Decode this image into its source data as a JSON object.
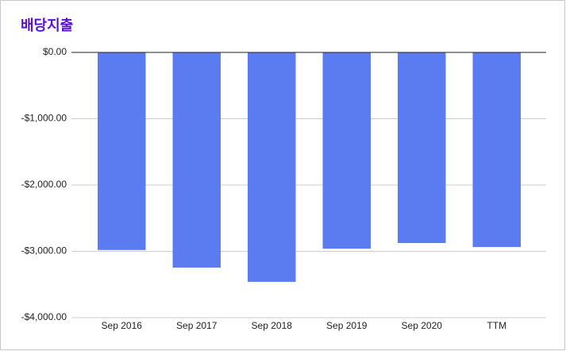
{
  "chart_data": {
    "type": "bar",
    "title": "배당지출",
    "categories": [
      "Sep 2016",
      "Sep 2017",
      "Sep 2018",
      "Sep 2019",
      "Sep 2020",
      "TTM"
    ],
    "values": [
      -2980,
      -3245,
      -3460,
      -2960,
      -2875,
      -2935
    ],
    "color": "#5b7cf0",
    "ylim": [
      -4000,
      0
    ],
    "yticks": [
      {
        "value": 0,
        "label": "$0.00"
      },
      {
        "value": -1000,
        "label": "-$1,000.00"
      },
      {
        "value": -2000,
        "label": "-$2,000.00"
      },
      {
        "value": -3000,
        "label": "-$3,000.00"
      },
      {
        "value": -4000,
        "label": "-$4,000.00"
      }
    ],
    "grid": true
  }
}
